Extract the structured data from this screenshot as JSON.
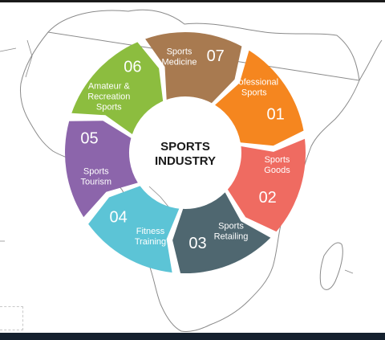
{
  "center": {
    "line1": "SPORTS",
    "line2": "INDUSTRY"
  },
  "segments": [
    {
      "id": "professional-sports",
      "number": "01",
      "label": [
        "Professional",
        "Sports"
      ],
      "color": "#f5861f"
    },
    {
      "id": "sports-goods",
      "number": "02",
      "label": [
        "Sports",
        "Goods"
      ],
      "color": "#ef6b61"
    },
    {
      "id": "sports-retailing",
      "number": "03",
      "label": [
        "Sports",
        "Retailing"
      ],
      "color": "#4f6770"
    },
    {
      "id": "fitness-training",
      "number": "04",
      "label": [
        "Fitness",
        "Training"
      ],
      "color": "#5cc4d6"
    },
    {
      "id": "sports-tourism",
      "number": "05",
      "label": [
        "Sports",
        "Tourism"
      ],
      "color": "#8c65ab"
    },
    {
      "id": "amateur-recreation-sports",
      "number": "06",
      "label": [
        "Amateur &",
        "Recreation",
        "Sports"
      ],
      "color": "#8cbd3f"
    },
    {
      "id": "sports-medicine",
      "number": "07",
      "label": [
        "Sports",
        "Medicine"
      ],
      "color": "#a87a50"
    }
  ],
  "colors": {
    "background": "#ffffff",
    "map_outline": "#8a8a8a",
    "center_text": "#1a1a1a",
    "bottom_bar": "#14202e",
    "top_line": "#1a1a1a"
  }
}
